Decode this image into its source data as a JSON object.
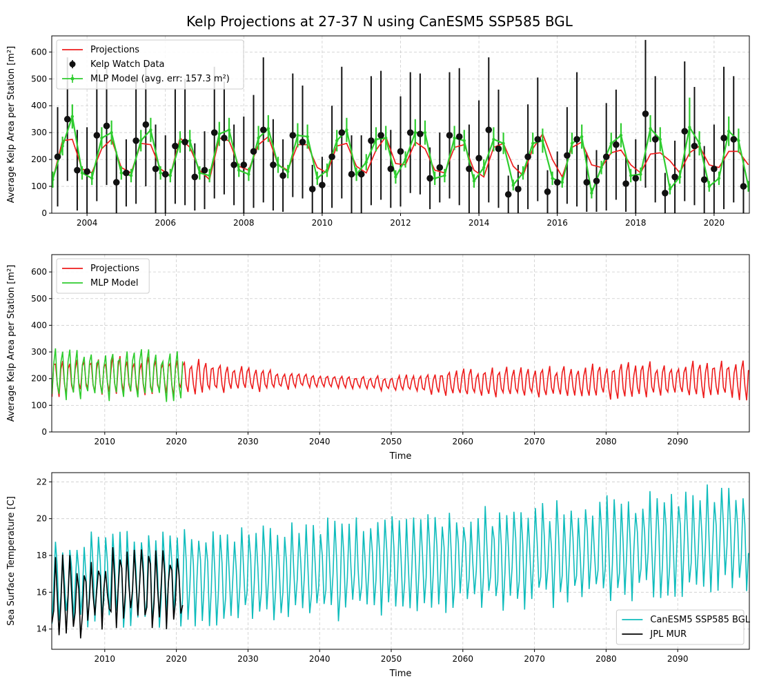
{
  "title": "Kelp Projections at 27-37 N using CanESM5 SSP585 BGL",
  "colors": {
    "projections": "#ee1c1c",
    "mlp": "#2ecc2e",
    "kelp_watch": "#111111",
    "canesm": "#0fbcbc",
    "jpl": "#000000",
    "grid": "#cccccc"
  },
  "chart_data": [
    {
      "type": "line",
      "name": "top-panel",
      "ylabel": "Average Kelp Area per Station [m²]",
      "xlabel": "",
      "xlim": [
        2003.1,
        2020.9
      ],
      "ylim": [
        0,
        660
      ],
      "xticks": [
        2004,
        2006,
        2008,
        2010,
        2012,
        2014,
        2016,
        2018,
        2020
      ],
      "yticks": [
        0,
        100,
        200,
        300,
        400,
        500,
        600
      ],
      "grid": true,
      "legend_position": "top-left",
      "legend": [
        "Projections",
        "Kelp Watch Data",
        "MLP Model (avg. err: 157.3 m²)"
      ],
      "series": [
        {
          "name": "Projections",
          "x": [
            2003.125,
            2003.375,
            2003.625,
            2003.875,
            2004.125,
            2004.375,
            2004.625,
            2004.875,
            2005.125,
            2005.375,
            2005.625,
            2005.875,
            2006.125,
            2006.375,
            2006.625,
            2006.875,
            2007.125,
            2007.375,
            2007.625,
            2007.875,
            2008.125,
            2008.375,
            2008.625,
            2008.875,
            2009.125,
            2009.375,
            2009.625,
            2009.875,
            2010.125,
            2010.375,
            2010.625,
            2010.875,
            2011.125,
            2011.375,
            2011.625,
            2011.875,
            2012.125,
            2012.375,
            2012.625,
            2012.875,
            2013.125,
            2013.375,
            2013.625,
            2013.875,
            2014.125,
            2014.375,
            2014.625,
            2014.875,
            2015.125,
            2015.375,
            2015.625,
            2015.875,
            2016.125,
            2016.375,
            2016.625,
            2016.875,
            2017.125,
            2017.375,
            2017.625,
            2017.875,
            2018.125,
            2018.375,
            2018.625,
            2018.875,
            2019.125,
            2019.375,
            2019.625,
            2019.875,
            2020.125,
            2020.375,
            2020.625,
            2020.875
          ],
          "y": [
            125,
            270,
            275,
            165,
            150,
            240,
            275,
            170,
            150,
            260,
            255,
            165,
            140,
            280,
            245,
            160,
            125,
            280,
            270,
            175,
            160,
            255,
            285,
            180,
            160,
            255,
            255,
            170,
            150,
            250,
            260,
            175,
            150,
            235,
            285,
            185,
            180,
            265,
            240,
            160,
            150,
            245,
            255,
            160,
            135,
            245,
            260,
            175,
            140,
            240,
            295,
            200,
            135,
            245,
            265,
            180,
            170,
            225,
            235,
            180,
            150,
            220,
            225,
            195,
            150,
            225,
            250,
            180,
            170,
            230,
            230,
            180
          ]
        },
        {
          "name": "MLP Model (avg. err: 157.3 m²)",
          "x": [
            2003.125,
            2003.375,
            2003.625,
            2003.875,
            2004.125,
            2004.375,
            2004.625,
            2004.875,
            2005.125,
            2005.375,
            2005.625,
            2005.875,
            2006.125,
            2006.375,
            2006.625,
            2006.875,
            2007.125,
            2007.375,
            2007.625,
            2007.875,
            2008.125,
            2008.375,
            2008.625,
            2008.875,
            2009.125,
            2009.375,
            2009.625,
            2009.875,
            2010.125,
            2010.375,
            2010.625,
            2010.875,
            2011.125,
            2011.375,
            2011.625,
            2011.875,
            2012.125,
            2012.375,
            2012.625,
            2012.875,
            2013.125,
            2013.375,
            2013.625,
            2013.875,
            2014.125,
            2014.375,
            2014.625,
            2014.875,
            2015.125,
            2015.375,
            2015.625,
            2015.875,
            2016.125,
            2016.375,
            2016.625,
            2016.875,
            2017.125,
            2017.375,
            2017.625,
            2017.875,
            2018.125,
            2018.375,
            2018.625,
            2018.875,
            2019.125,
            2019.375,
            2019.625,
            2019.875,
            2020.125,
            2020.375,
            2020.625,
            2020.875
          ],
          "y": [
            125,
            250,
            360,
            150,
            130,
            280,
            300,
            150,
            140,
            270,
            310,
            150,
            140,
            265,
            270,
            150,
            140,
            295,
            310,
            160,
            145,
            280,
            315,
            180,
            155,
            290,
            285,
            130,
            160,
            270,
            310,
            145,
            190,
            275,
            280,
            135,
            200,
            300,
            300,
            130,
            140,
            280,
            270,
            120,
            170,
            275,
            260,
            105,
            150,
            260,
            270,
            130,
            115,
            260,
            285,
            75,
            170,
            260,
            290,
            140,
            145,
            315,
            275,
            90,
            135,
            320,
            260,
            100,
            130,
            305,
            270,
            100
          ],
          "err": [
            30,
            35,
            45,
            25,
            25,
            40,
            45,
            25,
            25,
            40,
            45,
            25,
            25,
            40,
            40,
            25,
            25,
            45,
            45,
            25,
            25,
            45,
            50,
            30,
            25,
            45,
            45,
            25,
            25,
            40,
            45,
            25,
            30,
            45,
            45,
            25,
            30,
            50,
            45,
            25,
            25,
            45,
            40,
            25,
            30,
            45,
            40,
            20,
            25,
            40,
            45,
            25,
            20,
            40,
            45,
            20,
            25,
            40,
            45,
            25,
            25,
            50,
            45,
            20,
            25,
            110,
            45,
            20,
            25,
            55,
            45,
            20
          ]
        },
        {
          "name": "Kelp Watch Data",
          "x": [
            2003.0,
            2003.25,
            2003.5,
            2003.75,
            2004.0,
            2004.25,
            2004.5,
            2004.75,
            2005.0,
            2005.25,
            2005.5,
            2005.75,
            2006.0,
            2006.25,
            2006.5,
            2006.75,
            2007.0,
            2007.25,
            2007.5,
            2007.75,
            2008.0,
            2008.25,
            2008.5,
            2008.75,
            2009.0,
            2009.25,
            2009.5,
            2009.75,
            2010.0,
            2010.25,
            2010.5,
            2010.75,
            2011.0,
            2011.25,
            2011.5,
            2011.75,
            2012.0,
            2012.25,
            2012.5,
            2012.75,
            2013.0,
            2013.25,
            2013.5,
            2013.75,
            2014.0,
            2014.25,
            2014.5,
            2014.75,
            2015.0,
            2015.25,
            2015.5,
            2015.75,
            2016.0,
            2016.25,
            2016.5,
            2016.75,
            2017.0,
            2017.25,
            2017.5,
            2017.75,
            2018.0,
            2018.25,
            2018.5,
            2018.75,
            2019.0,
            2019.25,
            2019.5,
            2019.75,
            2020.0,
            2020.25,
            2020.5,
            2020.75,
            2021.0
          ],
          "y": [
            90,
            210,
            350,
            160,
            155,
            290,
            325,
            115,
            150,
            270,
            330,
            165,
            145,
            250,
            265,
            135,
            160,
            300,
            280,
            180,
            180,
            230,
            310,
            180,
            140,
            290,
            265,
            90,
            105,
            210,
            300,
            145,
            145,
            270,
            290,
            165,
            230,
            300,
            295,
            130,
            170,
            290,
            285,
            165,
            205,
            310,
            240,
            70,
            90,
            210,
            275,
            80,
            115,
            215,
            275,
            115,
            120,
            210,
            255,
            110,
            130,
            370,
            275,
            75,
            135,
            305,
            250,
            125,
            165,
            280,
            275,
            100,
            120
          ],
          "err": [
            310,
            185,
            230,
            150,
            165,
            245,
            220,
            115,
            125,
            235,
            230,
            165,
            145,
            215,
            235,
            125,
            145,
            245,
            210,
            150,
            180,
            210,
            270,
            170,
            135,
            230,
            210,
            90,
            105,
            190,
            245,
            145,
            145,
            240,
            240,
            145,
            205,
            225,
            225,
            115,
            130,
            235,
            255,
            165,
            215,
            270,
            220,
            70,
            90,
            195,
            230,
            80,
            115,
            180,
            250,
            110,
            115,
            200,
            205,
            105,
            145,
            275,
            235,
            75,
            135,
            260,
            220,
            125,
            165,
            265,
            235,
            100,
            110
          ]
        }
      ]
    },
    {
      "type": "line",
      "name": "middle-panel",
      "ylabel": "Average Kelp Area per Station [m²]",
      "xlabel": "Time",
      "xlim": [
        2002.6,
        2100.0
      ],
      "ylim": [
        0,
        665
      ],
      "xticks": [
        2010,
        2020,
        2030,
        2040,
        2050,
        2060,
        2070,
        2080,
        2090
      ],
      "yticks": [
        0,
        100,
        200,
        300,
        400,
        500,
        600
      ],
      "grid": true,
      "legend_position": "top-left",
      "legend": [
        "Projections",
        "MLP Model"
      ],
      "series": [
        {
          "name": "Projections",
          "x_start": 2002.625,
          "x_step": 0.25,
          "x_end": 2099.875,
          "mean": [
            205,
            205,
            195,
            190,
            180,
            180,
            185,
            195
          ],
          "amp": [
            70,
            65,
            45,
            20,
            25,
            50,
            60,
            70
          ],
          "amp_years": [
            2003,
            2020,
            2030,
            2040,
            2050,
            2060,
            2080,
            2100
          ]
        },
        {
          "name": "MLP Model",
          "x_start": 2002.625,
          "x_step": 0.25,
          "x_end": 2021.0,
          "mean": [
            210,
            205
          ],
          "amp": [
            85,
            85
          ],
          "amp_years": [
            2003,
            2021
          ]
        }
      ]
    },
    {
      "type": "line",
      "name": "bottom-panel",
      "ylabel": "Sea Surface Temperature [C]",
      "xlabel": "Time",
      "xlim": [
        2002.6,
        2100.0
      ],
      "ylim": [
        12.9,
        22.5
      ],
      "xticks": [
        2010,
        2020,
        2030,
        2040,
        2050,
        2060,
        2070,
        2080,
        2090
      ],
      "yticks": [
        14,
        16,
        18,
        20,
        22
      ],
      "grid": true,
      "legend_position": "bottom-right",
      "legend": [
        "CanESM5 SSP585 BGL",
        "JPL MUR"
      ],
      "series": [
        {
          "name": "CanESM5 SSP585 BGL",
          "x_start": 2002.625,
          "x_step": 0.25,
          "x_end": 2099.875,
          "low": [
            14.3,
            14.5,
            14.8,
            15.3,
            15.8,
            16.4
          ],
          "high": [
            18.8,
            19.2,
            19.6,
            20.1,
            20.8,
            21.6
          ],
          "at_years": [
            2003,
            2020,
            2040,
            2060,
            2080,
            2100
          ]
        },
        {
          "name": "JPL MUR",
          "x_start": 2002.625,
          "x_step": 0.25,
          "x_end": 2021.0,
          "low": [
            14.0,
            14.8
          ],
          "high": [
            17.6,
            18.4
          ],
          "at_years": [
            2003,
            2021
          ]
        }
      ]
    }
  ]
}
